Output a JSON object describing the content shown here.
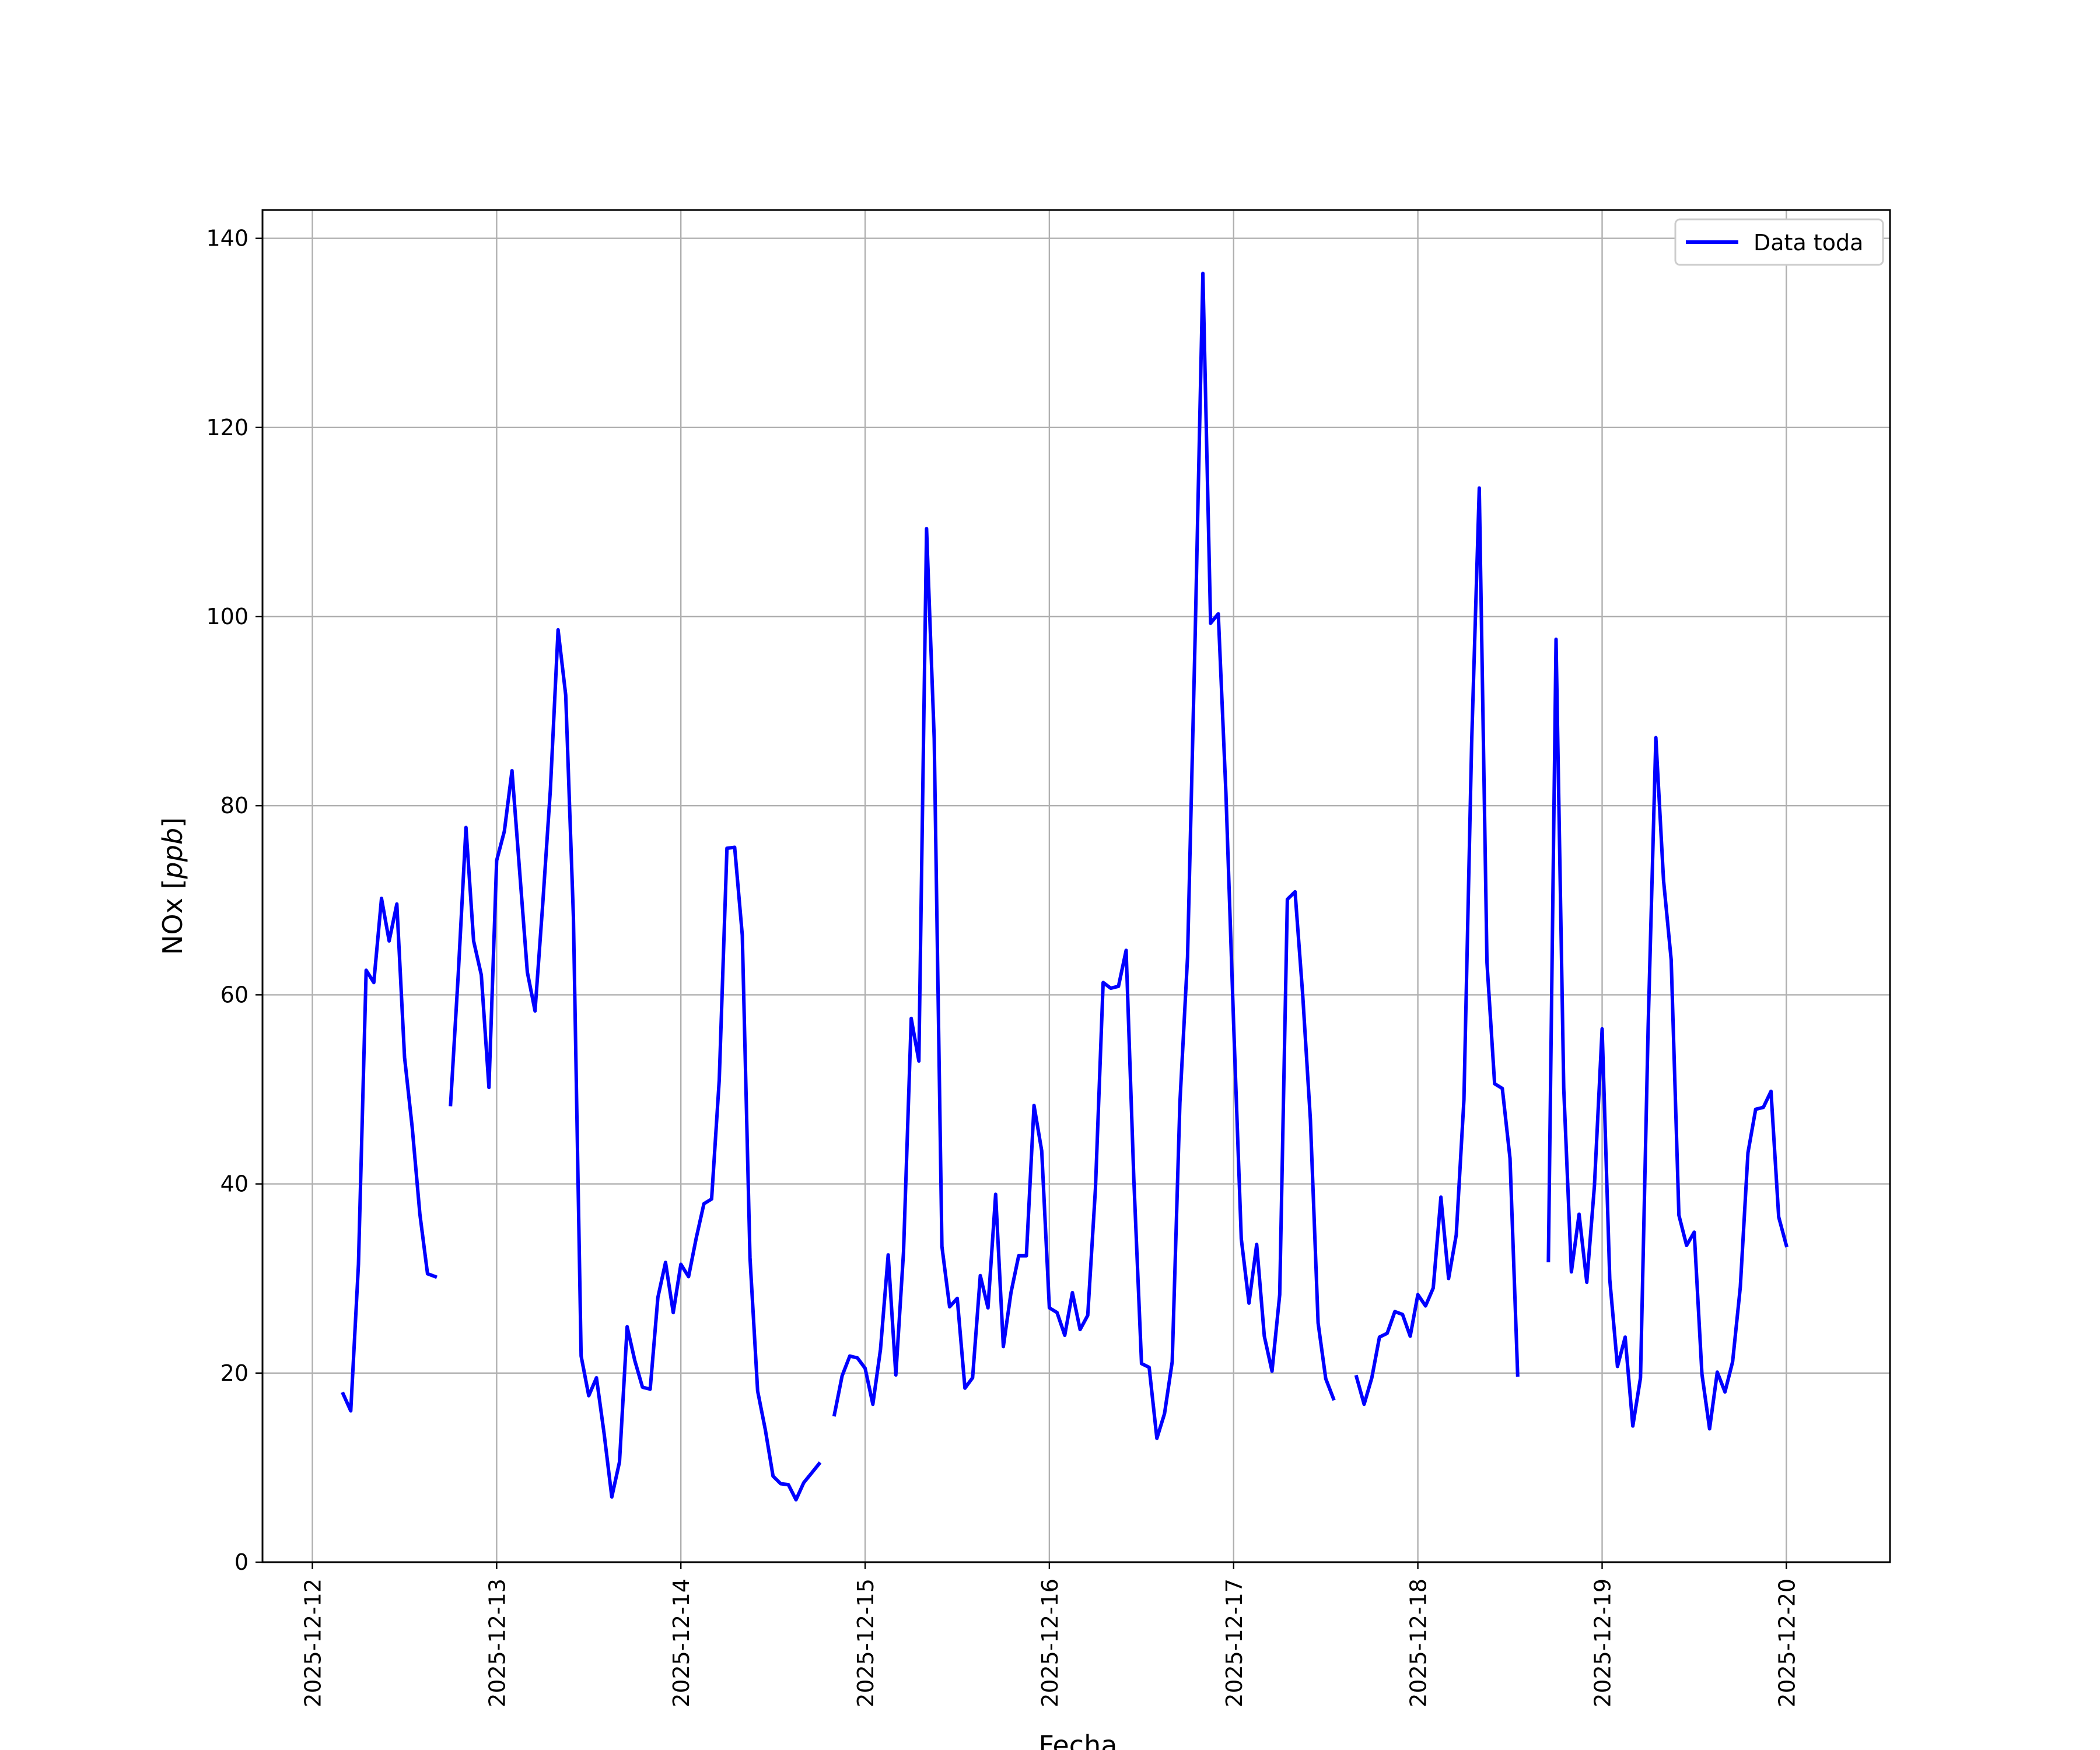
{
  "chart_data": {
    "type": "line",
    "xlabel": "Fecha",
    "ylabel": "NOx [ppb]",
    "ylabel_main": "NOx ",
    "ylabel_unit": "ppb",
    "xlim": [
      "2025-12-11 17:30",
      "2025-12-20 13:30"
    ],
    "ylim": [
      0,
      143
    ],
    "x_ticks": [
      "2025-12-12",
      "2025-12-13",
      "2025-12-14",
      "2025-12-15",
      "2025-12-16",
      "2025-12-17",
      "2025-12-18",
      "2025-12-19",
      "2025-12-20"
    ],
    "y_ticks": [
      0,
      20,
      40,
      60,
      80,
      100,
      120,
      140
    ],
    "grid": true,
    "legend_position": "upper right",
    "line_color": "#0000ff",
    "series": [
      {
        "name": "Data toda",
        "segments": [
          [
            [
              "2025-12-12 04:00",
              17.8
            ],
            [
              "2025-12-12 05:00",
              16.0
            ],
            [
              "2025-12-12 06:00",
              31.5
            ],
            [
              "2025-12-12 07:00",
              62.6
            ],
            [
              "2025-12-12 08:00",
              61.3
            ],
            [
              "2025-12-12 09:00",
              70.2
            ],
            [
              "2025-12-12 10:00",
              65.7
            ],
            [
              "2025-12-12 11:00",
              69.6
            ],
            [
              "2025-12-12 12:00",
              53.4
            ],
            [
              "2025-12-12 13:00",
              46.0
            ],
            [
              "2025-12-12 14:00",
              36.8
            ],
            [
              "2025-12-12 15:00",
              30.5
            ],
            [
              "2025-12-12 16:00",
              30.2
            ]
          ],
          [
            [
              "2025-12-12 18:00",
              48.4
            ],
            [
              "2025-12-12 19:00",
              62.2
            ],
            [
              "2025-12-12 20:00",
              77.7
            ],
            [
              "2025-12-12 21:00",
              65.7
            ],
            [
              "2025-12-12 22:00",
              62.1
            ],
            [
              "2025-12-12 23:00",
              50.2
            ],
            [
              "2025-12-13 00:00",
              74.2
            ],
            [
              "2025-12-13 01:00",
              77.3
            ],
            [
              "2025-12-13 02:00",
              83.7
            ],
            [
              "2025-12-13 03:00",
              73.0
            ],
            [
              "2025-12-13 04:00",
              62.4
            ],
            [
              "2025-12-13 05:00",
              58.3
            ],
            [
              "2025-12-13 06:00",
              69.6
            ],
            [
              "2025-12-13 07:00",
              81.7
            ],
            [
              "2025-12-13 08:00",
              98.6
            ],
            [
              "2025-12-13 09:00",
              91.7
            ],
            [
              "2025-12-13 10:00",
              68.2
            ],
            [
              "2025-12-13 11:00",
              21.8
            ],
            [
              "2025-12-13 12:00",
              17.6
            ],
            [
              "2025-12-13 13:00",
              19.5
            ],
            [
              "2025-12-13 14:00",
              13.6
            ],
            [
              "2025-12-13 15:00",
              6.9
            ],
            [
              "2025-12-13 16:00",
              10.6
            ],
            [
              "2025-12-13 17:00",
              24.9
            ],
            [
              "2025-12-13 18:00",
              21.3
            ],
            [
              "2025-12-13 19:00",
              18.5
            ],
            [
              "2025-12-13 20:00",
              18.3
            ],
            [
              "2025-12-13 21:00",
              28.0
            ],
            [
              "2025-12-13 22:00",
              31.7
            ],
            [
              "2025-12-13 23:00",
              26.4
            ],
            [
              "2025-12-14 00:00",
              31.5
            ],
            [
              "2025-12-14 01:00",
              30.2
            ],
            [
              "2025-12-14 02:00",
              34.3
            ],
            [
              "2025-12-14 03:00",
              37.9
            ],
            [
              "2025-12-14 04:00",
              38.4
            ],
            [
              "2025-12-14 05:00",
              51.0
            ],
            [
              "2025-12-14 06:00",
              75.5
            ],
            [
              "2025-12-14 07:00",
              75.6
            ],
            [
              "2025-12-14 08:00",
              66.3
            ],
            [
              "2025-12-14 09:00",
              32.2
            ],
            [
              "2025-12-14 10:00",
              18.1
            ],
            [
              "2025-12-14 11:00",
              14.0
            ],
            [
              "2025-12-14 12:00",
              9.1
            ],
            [
              "2025-12-14 13:00",
              8.3
            ],
            [
              "2025-12-14 14:00",
              8.2
            ],
            [
              "2025-12-14 15:00",
              6.6
            ],
            [
              "2025-12-14 16:00",
              8.4
            ],
            [
              "2025-12-14 17:00",
              9.4
            ],
            [
              "2025-12-14 18:00",
              10.4
            ]
          ],
          [
            [
              "2025-12-14 20:00",
              15.6
            ],
            [
              "2025-12-14 21:00",
              19.7
            ],
            [
              "2025-12-14 22:00",
              21.8
            ],
            [
              "2025-12-14 23:00",
              21.6
            ],
            [
              "2025-12-15 00:00",
              20.5
            ],
            [
              "2025-12-15 01:00",
              16.7
            ],
            [
              "2025-12-15 02:00",
              22.5
            ],
            [
              "2025-12-15 03:00",
              32.5
            ],
            [
              "2025-12-15 04:00",
              19.8
            ],
            [
              "2025-12-15 05:00",
              32.8
            ],
            [
              "2025-12-15 06:00",
              57.5
            ],
            [
              "2025-12-15 07:00",
              53.0
            ],
            [
              "2025-12-15 08:00",
              109.3
            ],
            [
              "2025-12-15 09:00",
              87.1
            ],
            [
              "2025-12-15 10:00",
              33.4
            ],
            [
              "2025-12-15 11:00",
              27.0
            ],
            [
              "2025-12-15 12:00",
              27.9
            ],
            [
              "2025-12-15 13:00",
              18.4
            ],
            [
              "2025-12-15 14:00",
              19.5
            ],
            [
              "2025-12-15 15:00",
              30.3
            ],
            [
              "2025-12-15 16:00",
              26.9
            ],
            [
              "2025-12-15 17:00",
              38.9
            ],
            [
              "2025-12-15 18:00",
              22.8
            ],
            [
              "2025-12-15 19:00",
              28.5
            ],
            [
              "2025-12-15 20:00",
              32.4
            ],
            [
              "2025-12-15 21:00",
              32.4
            ],
            [
              "2025-12-15 22:00",
              48.3
            ],
            [
              "2025-12-15 23:00",
              43.5
            ],
            [
              "2025-12-16 00:00",
              26.9
            ],
            [
              "2025-12-16 01:00",
              26.4
            ],
            [
              "2025-12-16 02:00",
              24.0
            ],
            [
              "2025-12-16 03:00",
              28.5
            ],
            [
              "2025-12-16 04:00",
              24.6
            ],
            [
              "2025-12-16 05:00",
              26.1
            ],
            [
              "2025-12-16 06:00",
              39.5
            ],
            [
              "2025-12-16 07:00",
              61.3
            ],
            [
              "2025-12-16 08:00",
              60.7
            ],
            [
              "2025-12-16 09:00",
              60.9
            ],
            [
              "2025-12-16 10:00",
              64.7
            ],
            [
              "2025-12-16 11:00",
              40.5
            ],
            [
              "2025-12-16 12:00",
              21.0
            ],
            [
              "2025-12-16 13:00",
              20.6
            ],
            [
              "2025-12-16 14:00",
              13.1
            ],
            [
              "2025-12-16 15:00",
              15.7
            ],
            [
              "2025-12-16 16:00",
              21.2
            ],
            [
              "2025-12-16 17:00",
              48.6
            ],
            [
              "2025-12-16 18:00",
              64.0
            ],
            [
              "2025-12-16 19:00",
              98.4
            ],
            [
              "2025-12-16 20:00",
              136.3
            ],
            [
              "2025-12-16 21:00",
              99.3
            ],
            [
              "2025-12-16 22:00",
              100.3
            ],
            [
              "2025-12-16 23:00",
              81.3
            ],
            [
              "2025-12-17 00:00",
              56.9
            ],
            [
              "2025-12-17 01:00",
              34.2
            ],
            [
              "2025-12-17 02:00",
              27.4
            ],
            [
              "2025-12-17 03:00",
              33.6
            ],
            [
              "2025-12-17 04:00",
              23.9
            ],
            [
              "2025-12-17 05:00",
              20.2
            ],
            [
              "2025-12-17 06:00",
              28.3
            ],
            [
              "2025-12-17 07:00",
              70.1
            ],
            [
              "2025-12-17 08:00",
              70.9
            ],
            [
              "2025-12-17 09:00",
              60.0
            ],
            [
              "2025-12-17 10:00",
              46.8
            ],
            [
              "2025-12-17 11:00",
              25.3
            ],
            [
              "2025-12-17 12:00",
              19.4
            ],
            [
              "2025-12-17 13:00",
              17.3
            ]
          ],
          [
            [
              "2025-12-17 16:00",
              19.6
            ],
            [
              "2025-12-17 17:00",
              16.7
            ],
            [
              "2025-12-17 18:00",
              19.5
            ],
            [
              "2025-12-17 19:00",
              23.8
            ],
            [
              "2025-12-17 20:00",
              24.2
            ],
            [
              "2025-12-17 21:00",
              26.5
            ],
            [
              "2025-12-17 22:00",
              26.2
            ],
            [
              "2025-12-17 23:00",
              23.9
            ],
            [
              "2025-12-18 00:00",
              28.3
            ],
            [
              "2025-12-18 01:00",
              27.1
            ],
            [
              "2025-12-18 02:00",
              29.0
            ],
            [
              "2025-12-18 03:00",
              38.6
            ],
            [
              "2025-12-18 04:00",
              30.0
            ],
            [
              "2025-12-18 05:00",
              34.6
            ],
            [
              "2025-12-18 06:00",
              48.9
            ],
            [
              "2025-12-18 07:00",
              86.6
            ],
            [
              "2025-12-18 08:00",
              113.6
            ],
            [
              "2025-12-18 09:00",
              63.4
            ],
            [
              "2025-12-18 10:00",
              50.6
            ],
            [
              "2025-12-18 11:00",
              50.1
            ],
            [
              "2025-12-18 12:00",
              42.7
            ],
            [
              "2025-12-18 13:00",
              19.8
            ]
          ],
          [
            [
              "2025-12-18 17:00",
              31.9
            ],
            [
              "2025-12-18 18:00",
              97.6
            ],
            [
              "2025-12-18 19:00",
              50.1
            ],
            [
              "2025-12-18 20:00",
              30.7
            ],
            [
              "2025-12-18 21:00",
              36.8
            ],
            [
              "2025-12-18 22:00",
              29.6
            ],
            [
              "2025-12-18 23:00",
              39.8
            ],
            [
              "2025-12-19 00:00",
              56.4
            ],
            [
              "2025-12-19 01:00",
              29.9
            ],
            [
              "2025-12-19 02:00",
              20.7
            ],
            [
              "2025-12-19 03:00",
              23.8
            ],
            [
              "2025-12-19 04:00",
              14.4
            ],
            [
              "2025-12-19 05:00",
              19.5
            ],
            [
              "2025-12-19 06:00",
              56.6
            ],
            [
              "2025-12-19 07:00",
              87.2
            ],
            [
              "2025-12-19 08:00",
              72.1
            ],
            [
              "2025-12-19 09:00",
              63.7
            ],
            [
              "2025-12-19 10:00",
              36.7
            ],
            [
              "2025-12-19 11:00",
              33.5
            ],
            [
              "2025-12-19 12:00",
              34.9
            ],
            [
              "2025-12-19 13:00",
              19.9
            ],
            [
              "2025-12-19 14:00",
              14.1
            ],
            [
              "2025-12-19 15:00",
              20.1
            ],
            [
              "2025-12-19 16:00",
              18.0
            ],
            [
              "2025-12-19 17:00",
              21.2
            ],
            [
              "2025-12-19 18:00",
              29.1
            ],
            [
              "2025-12-19 19:00",
              43.3
            ],
            [
              "2025-12-19 20:00",
              47.9
            ],
            [
              "2025-12-19 21:00",
              48.1
            ],
            [
              "2025-12-19 22:00",
              49.8
            ],
            [
              "2025-12-19 23:00",
              36.5
            ],
            [
              "2025-12-20 00:00",
              33.5
            ]
          ]
        ]
      }
    ]
  }
}
